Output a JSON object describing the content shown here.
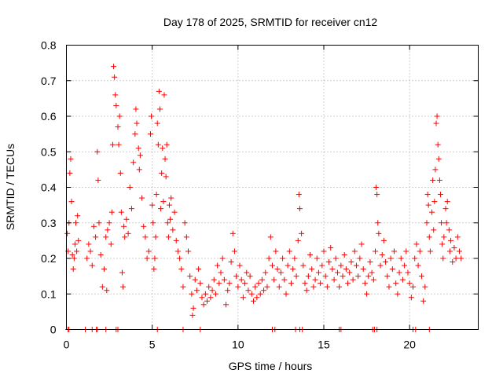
{
  "chart_data": {
    "type": "scatter",
    "title": "Day 178 of 2025, SRMTID for receiver cn12",
    "xlabel": "GPS time / hours",
    "ylabel": "SRMTID / TECUs",
    "xlim": [
      0,
      24
    ],
    "ylim": [
      0,
      0.8
    ],
    "xticks": [
      0,
      5,
      10,
      15,
      20
    ],
    "xtick_labels": [
      "0",
      "5",
      "10",
      "15",
      "20"
    ],
    "yticks": [
      0,
      0.1,
      0.2,
      0.3,
      0.4,
      0.5,
      0.6,
      0.7,
      0.8
    ],
    "ytick_labels": [
      "0",
      "0.1",
      "0.2",
      "0.3",
      "0.4",
      "0.5",
      "0.6",
      "0.7",
      "0.8"
    ],
    "grid": true,
    "marker": "+",
    "marker_color": "#ff0000",
    "series": [
      {
        "name": "SRMTID",
        "points": [
          [
            0.05,
            0.27
          ],
          [
            0.1,
            0.22
          ],
          [
            0.15,
            0.3
          ],
          [
            0.2,
            0.44
          ],
          [
            0.25,
            0.48
          ],
          [
            0.3,
            0.36
          ],
          [
            0.35,
            0.21
          ],
          [
            0.4,
            0.17
          ],
          [
            0.45,
            0.2
          ],
          [
            0.5,
            0.24
          ],
          [
            0.55,
            0.3
          ],
          [
            0.6,
            0.22
          ],
          [
            0.65,
            0.32
          ],
          [
            0.7,
            0.25
          ],
          [
            1.2,
            0.2
          ],
          [
            1.3,
            0.24
          ],
          [
            1.4,
            0.22
          ],
          [
            1.5,
            0.18
          ],
          [
            1.6,
            0.29
          ],
          [
            1.7,
            0.26
          ],
          [
            1.8,
            0.5
          ],
          [
            1.85,
            0.42
          ],
          [
            1.9,
            0.3
          ],
          [
            2.0,
            0.21
          ],
          [
            2.1,
            0.12
          ],
          [
            2.2,
            0.17
          ],
          [
            2.3,
            0.26
          ],
          [
            2.35,
            0.11
          ],
          [
            2.4,
            0.28
          ],
          [
            2.5,
            0.3
          ],
          [
            2.6,
            0.24
          ],
          [
            2.65,
            0.33
          ],
          [
            2.7,
            0.52
          ],
          [
            2.75,
            0.74
          ],
          [
            2.8,
            0.71
          ],
          [
            2.85,
            0.66
          ],
          [
            2.9,
            0.63
          ],
          [
            3.0,
            0.57
          ],
          [
            3.05,
            0.52
          ],
          [
            3.1,
            0.6
          ],
          [
            3.15,
            0.44
          ],
          [
            3.2,
            0.33
          ],
          [
            3.25,
            0.16
          ],
          [
            3.3,
            0.12
          ],
          [
            3.35,
            0.29
          ],
          [
            3.4,
            0.26
          ],
          [
            3.5,
            0.31
          ],
          [
            3.6,
            0.27
          ],
          [
            3.7,
            0.4
          ],
          [
            3.8,
            0.34
          ],
          [
            3.9,
            0.47
          ],
          [
            4.0,
            0.55
          ],
          [
            4.05,
            0.62
          ],
          [
            4.1,
            0.58
          ],
          [
            4.2,
            0.51
          ],
          [
            4.25,
            0.45
          ],
          [
            4.3,
            0.49
          ],
          [
            4.4,
            0.37
          ],
          [
            4.5,
            0.29
          ],
          [
            4.6,
            0.26
          ],
          [
            4.7,
            0.2
          ],
          [
            4.8,
            0.22
          ],
          [
            4.9,
            0.55
          ],
          [
            4.95,
            0.6
          ],
          [
            5.0,
            0.35
          ],
          [
            5.05,
            0.3
          ],
          [
            5.1,
            0.17
          ],
          [
            5.15,
            0.2
          ],
          [
            5.2,
            0.26
          ],
          [
            5.25,
            0.38
          ],
          [
            5.3,
            0.58
          ],
          [
            5.35,
            0.52
          ],
          [
            5.4,
            0.67
          ],
          [
            5.45,
            0.62
          ],
          [
            5.5,
            0.34
          ],
          [
            5.55,
            0.44
          ],
          [
            5.6,
            0.51
          ],
          [
            5.65,
            0.36
          ],
          [
            5.7,
            0.66
          ],
          [
            5.75,
            0.48
          ],
          [
            5.8,
            0.43
          ],
          [
            5.85,
            0.52
          ],
          [
            5.9,
            0.3
          ],
          [
            5.95,
            0.26
          ],
          [
            6.0,
            0.35
          ],
          [
            6.05,
            0.31
          ],
          [
            6.1,
            0.37
          ],
          [
            6.2,
            0.28
          ],
          [
            6.3,
            0.33
          ],
          [
            6.4,
            0.25
          ],
          [
            6.5,
            0.22
          ],
          [
            6.6,
            0.2
          ],
          [
            6.7,
            0.17
          ],
          [
            6.8,
            0.12
          ],
          [
            6.9,
            0.3
          ],
          [
            7.0,
            0.26
          ],
          [
            7.1,
            0.22
          ],
          [
            7.2,
            0.15
          ],
          [
            7.3,
            0.1
          ],
          [
            7.35,
            0.04
          ],
          [
            7.4,
            0.06
          ],
          [
            7.5,
            0.14
          ],
          [
            7.6,
            0.11
          ],
          [
            7.7,
            0.17
          ],
          [
            7.8,
            0.13
          ],
          [
            7.9,
            0.09
          ],
          [
            8.0,
            0.07
          ],
          [
            8.1,
            0.1
          ],
          [
            8.2,
            0.08
          ],
          [
            8.3,
            0.12
          ],
          [
            8.4,
            0.09
          ],
          [
            8.5,
            0.11
          ],
          [
            8.6,
            0.14
          ],
          [
            8.7,
            0.1
          ],
          [
            8.8,
            0.18
          ],
          [
            8.9,
            0.13
          ],
          [
            9.0,
            0.16
          ],
          [
            9.1,
            0.2
          ],
          [
            9.2,
            0.14
          ],
          [
            9.3,
            0.07
          ],
          [
            9.4,
            0.11
          ],
          [
            9.5,
            0.13
          ],
          [
            9.6,
            0.19
          ],
          [
            9.7,
            0.27
          ],
          [
            9.8,
            0.22
          ],
          [
            9.9,
            0.15
          ],
          [
            10.0,
            0.12
          ],
          [
            10.1,
            0.18
          ],
          [
            10.2,
            0.14
          ],
          [
            10.3,
            0.09
          ],
          [
            10.4,
            0.13
          ],
          [
            10.5,
            0.16
          ],
          [
            10.6,
            0.11
          ],
          [
            10.7,
            0.15
          ],
          [
            10.8,
            0.1
          ],
          [
            10.9,
            0.08
          ],
          [
            11.0,
            0.12
          ],
          [
            11.1,
            0.09
          ],
          [
            11.2,
            0.13
          ],
          [
            11.3,
            0.1
          ],
          [
            11.4,
            0.14
          ],
          [
            11.5,
            0.11
          ],
          [
            11.6,
            0.16
          ],
          [
            11.7,
            0.12
          ],
          [
            11.8,
            0.2
          ],
          [
            11.9,
            0.26
          ],
          [
            12.0,
            0.18
          ],
          [
            12.1,
            0.14
          ],
          [
            12.2,
            0.22
          ],
          [
            12.3,
            0.17
          ],
          [
            12.4,
            0.12
          ],
          [
            12.5,
            0.16
          ],
          [
            12.6,
            0.2
          ],
          [
            12.7,
            0.14
          ],
          [
            12.8,
            0.1
          ],
          [
            12.9,
            0.18
          ],
          [
            13.0,
            0.22
          ],
          [
            13.1,
            0.13
          ],
          [
            13.2,
            0.17
          ],
          [
            13.3,
            0.2
          ],
          [
            13.4,
            0.15
          ],
          [
            13.5,
            0.25
          ],
          [
            13.55,
            0.38
          ],
          [
            13.6,
            0.34
          ],
          [
            13.7,
            0.27
          ],
          [
            13.8,
            0.18
          ],
          [
            13.9,
            0.13
          ],
          [
            14.0,
            0.11
          ],
          [
            14.1,
            0.15
          ],
          [
            14.2,
            0.21
          ],
          [
            14.3,
            0.17
          ],
          [
            14.4,
            0.12
          ],
          [
            14.5,
            0.14
          ],
          [
            14.6,
            0.2
          ],
          [
            14.7,
            0.16
          ],
          [
            14.8,
            0.13
          ],
          [
            14.9,
            0.18
          ],
          [
            15.0,
            0.22
          ],
          [
            15.1,
            0.15
          ],
          [
            15.2,
            0.12
          ],
          [
            15.3,
            0.19
          ],
          [
            15.4,
            0.23
          ],
          [
            15.5,
            0.17
          ],
          [
            15.6,
            0.14
          ],
          [
            15.7,
            0.2
          ],
          [
            15.8,
            0.16
          ],
          [
            15.9,
            0.12
          ],
          [
            16.0,
            0.18
          ],
          [
            16.1,
            0.15
          ],
          [
            16.2,
            0.21
          ],
          [
            16.3,
            0.17
          ],
          [
            16.4,
            0.13
          ],
          [
            16.5,
            0.16
          ],
          [
            16.6,
            0.19
          ],
          [
            16.7,
            0.14
          ],
          [
            16.8,
            0.22
          ],
          [
            16.9,
            0.18
          ],
          [
            17.0,
            0.15
          ],
          [
            17.1,
            0.2
          ],
          [
            17.2,
            0.24
          ],
          [
            17.3,
            0.17
          ],
          [
            17.4,
            0.13
          ],
          [
            17.5,
            0.1
          ],
          [
            17.6,
            0.15
          ],
          [
            17.7,
            0.19
          ],
          [
            17.8,
            0.16
          ],
          [
            17.9,
            0.14
          ],
          [
            18.0,
            0.22
          ],
          [
            18.05,
            0.4
          ],
          [
            18.1,
            0.38
          ],
          [
            18.15,
            0.3
          ],
          [
            18.2,
            0.27
          ],
          [
            18.3,
            0.18
          ],
          [
            18.4,
            0.21
          ],
          [
            18.5,
            0.25
          ],
          [
            18.6,
            0.19
          ],
          [
            18.7,
            0.15
          ],
          [
            18.8,
            0.12
          ],
          [
            18.9,
            0.2
          ],
          [
            19.0,
            0.17
          ],
          [
            19.1,
            0.22
          ],
          [
            19.2,
            0.13
          ],
          [
            19.3,
            0.1
          ],
          [
            19.4,
            0.16
          ],
          [
            19.5,
            0.2
          ],
          [
            19.6,
            0.14
          ],
          [
            19.7,
            0.18
          ],
          [
            19.8,
            0.22
          ],
          [
            19.9,
            0.16
          ],
          [
            20.0,
            0.13
          ],
          [
            20.1,
            0.09
          ],
          [
            20.2,
            0.12
          ],
          [
            20.3,
            0.2
          ],
          [
            20.4,
            0.24
          ],
          [
            20.5,
            0.18
          ],
          [
            20.6,
            0.22
          ],
          [
            20.7,
            0.15
          ],
          [
            20.8,
            0.08
          ],
          [
            20.9,
            0.12
          ],
          [
            21.0,
            0.3
          ],
          [
            21.05,
            0.38
          ],
          [
            21.1,
            0.35
          ],
          [
            21.15,
            0.26
          ],
          [
            21.2,
            0.22
          ],
          [
            21.3,
            0.33
          ],
          [
            21.35,
            0.42
          ],
          [
            21.4,
            0.28
          ],
          [
            21.45,
            0.36
          ],
          [
            21.5,
            0.45
          ],
          [
            21.55,
            0.58
          ],
          [
            21.6,
            0.6
          ],
          [
            21.65,
            0.52
          ],
          [
            21.7,
            0.48
          ],
          [
            21.75,
            0.42
          ],
          [
            21.8,
            0.38
          ],
          [
            21.85,
            0.3
          ],
          [
            21.9,
            0.24
          ],
          [
            21.95,
            0.2
          ],
          [
            22.0,
            0.26
          ],
          [
            22.1,
            0.34
          ],
          [
            22.15,
            0.3
          ],
          [
            22.2,
            0.36
          ],
          [
            22.3,
            0.28
          ],
          [
            22.35,
            0.22
          ],
          [
            22.4,
            0.25
          ],
          [
            22.5,
            0.19
          ],
          [
            22.6,
            0.23
          ],
          [
            22.7,
            0.2
          ],
          [
            22.8,
            0.26
          ],
          [
            22.9,
            0.22
          ],
          [
            23.0,
            0.2
          ],
          [
            0.1,
            0.0
          ],
          [
            0.15,
            0.0
          ],
          [
            1.1,
            0.0
          ],
          [
            1.5,
            0.0
          ],
          [
            1.75,
            0.0
          ],
          [
            1.8,
            0.0
          ],
          [
            2.3,
            0.0
          ],
          [
            2.9,
            0.0
          ],
          [
            3.0,
            0.0
          ],
          [
            5.3,
            0.0
          ],
          [
            6.8,
            0.0
          ],
          [
            7.8,
            0.0
          ],
          [
            12.0,
            0.0
          ],
          [
            12.15,
            0.0
          ],
          [
            13.35,
            0.0
          ],
          [
            13.6,
            0.0
          ],
          [
            13.75,
            0.0
          ],
          [
            15.9,
            0.0
          ],
          [
            16.0,
            0.0
          ],
          [
            17.85,
            0.0
          ],
          [
            17.95,
            0.0
          ],
          [
            18.1,
            0.0
          ],
          [
            20.2,
            0.0
          ],
          [
            20.35,
            0.0
          ],
          [
            21.15,
            0.0
          ]
        ]
      }
    ]
  }
}
